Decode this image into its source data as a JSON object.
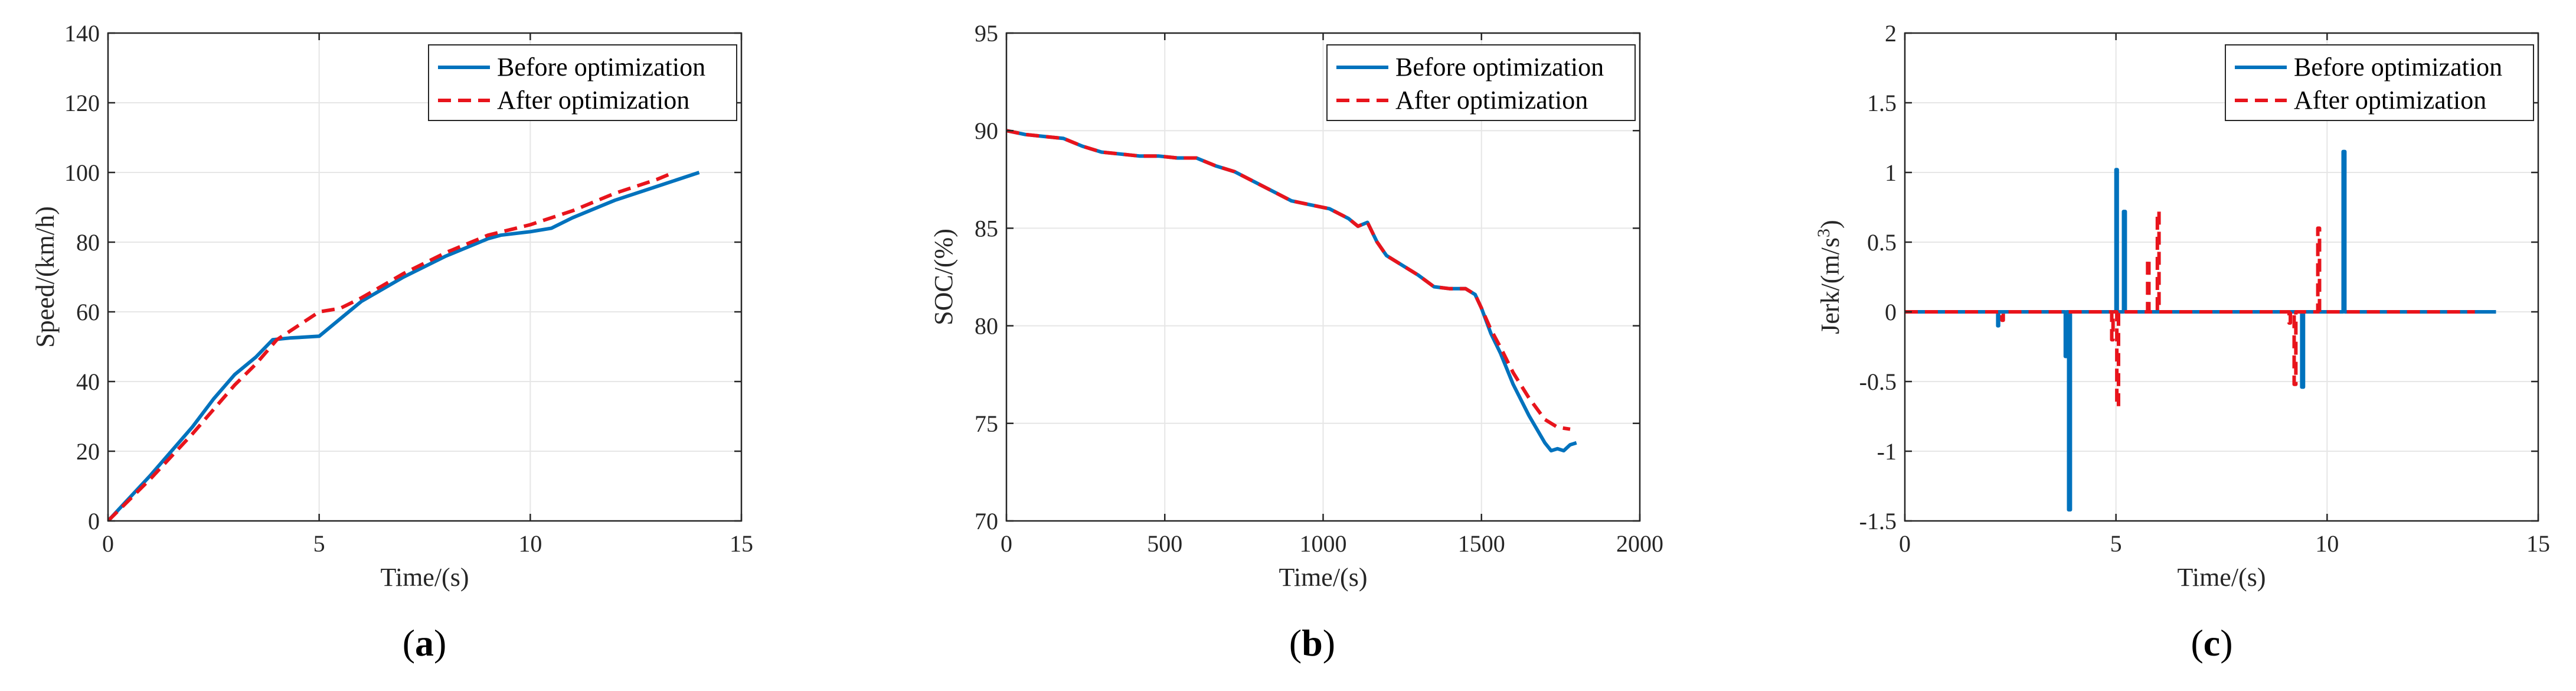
{
  "colors": {
    "before": "#0072BD",
    "after": "#e8141c",
    "axis": "#262626",
    "grid": "#e6e6e6"
  },
  "chart_data": [
    {
      "type": "line",
      "caption": "a",
      "xlabel": "Time/(s)",
      "ylabel": "Speed/(km/h)",
      "xlim": [
        0,
        15
      ],
      "ylim": [
        0,
        140
      ],
      "xticks": [
        0,
        5,
        10,
        15
      ],
      "yticks": [
        0,
        20,
        40,
        60,
        80,
        100,
        120,
        140
      ],
      "legend_location": "top-right",
      "series": [
        {
          "name": "Before optimization",
          "x": [
            0,
            1,
            2,
            2.5,
            3,
            3.5,
            3.9,
            4.3,
            5,
            5.5,
            6,
            7,
            8,
            9,
            9.3,
            10,
            10.5,
            11,
            12,
            13,
            14
          ],
          "y": [
            0,
            13,
            27,
            35,
            42,
            47,
            52,
            52.5,
            53,
            58,
            63,
            70,
            76,
            81,
            82,
            83,
            84,
            87,
            92,
            96,
            100
          ]
        },
        {
          "name": "After optimization",
          "x": [
            0,
            1,
            2,
            3,
            3.5,
            4,
            4.5,
            5,
            5.5,
            6,
            7,
            8,
            9,
            10,
            11,
            12,
            13,
            13.4
          ],
          "y": [
            0,
            12,
            25,
            39,
            45,
            52,
            56,
            60,
            61,
            64,
            71,
            77,
            82,
            85,
            89,
            94,
            98,
            100
          ]
        }
      ]
    },
    {
      "type": "line",
      "caption": "b",
      "xlabel": "Time/(s)",
      "ylabel": "SOC/(%)",
      "xlim": [
        0,
        2000
      ],
      "ylim": [
        70,
        95
      ],
      "xticks": [
        0,
        500,
        1000,
        1500,
        2000
      ],
      "yticks": [
        70,
        75,
        80,
        85,
        90,
        95
      ],
      "legend_location": "top-right",
      "series": [
        {
          "name": "Before optimization",
          "x": [
            0,
            60,
            120,
            180,
            240,
            300,
            360,
            420,
            480,
            540,
            600,
            660,
            720,
            780,
            840,
            900,
            960,
            1020,
            1080,
            1110,
            1140,
            1170,
            1200,
            1250,
            1300,
            1350,
            1400,
            1450,
            1480,
            1500,
            1530,
            1560,
            1600,
            1650,
            1700,
            1720,
            1740,
            1760,
            1780,
            1800
          ],
          "y": [
            90,
            89.8,
            89.7,
            89.6,
            89.2,
            88.9,
            88.8,
            88.7,
            88.7,
            88.6,
            88.6,
            88.2,
            87.9,
            87.4,
            86.9,
            86.4,
            86.2,
            86.0,
            85.5,
            85.1,
            85.3,
            84.3,
            83.6,
            83.1,
            82.6,
            82.0,
            81.9,
            81.9,
            81.6,
            80.9,
            79.6,
            78.6,
            77.0,
            75.4,
            74.0,
            73.6,
            73.7,
            73.6,
            73.9,
            74.0
          ]
        },
        {
          "name": "After optimization",
          "x": [
            0,
            60,
            120,
            180,
            240,
            300,
            360,
            420,
            480,
            540,
            600,
            660,
            720,
            780,
            840,
            900,
            960,
            1020,
            1080,
            1110,
            1140,
            1170,
            1200,
            1250,
            1300,
            1350,
            1400,
            1450,
            1480,
            1500,
            1530,
            1560,
            1600,
            1650,
            1700,
            1740,
            1780
          ],
          "y": [
            90,
            89.8,
            89.7,
            89.6,
            89.2,
            88.9,
            88.8,
            88.7,
            88.7,
            88.6,
            88.6,
            88.2,
            87.9,
            87.4,
            86.9,
            86.4,
            86.2,
            86.0,
            85.5,
            85.1,
            85.3,
            84.3,
            83.6,
            83.1,
            82.6,
            82.0,
            81.9,
            81.9,
            81.6,
            80.9,
            79.8,
            78.9,
            77.6,
            76.3,
            75.2,
            74.8,
            74.7
          ]
        }
      ]
    },
    {
      "type": "line",
      "caption": "c",
      "xlabel": "Time/(s)",
      "ylabel": "Jerk/(m/s",
      "ylabel_superscript": "3",
      "ylabel_suffix": ")",
      "xlim": [
        0,
        15
      ],
      "ylim": [
        -1.5,
        2
      ],
      "xticks": [
        0,
        5,
        10,
        15
      ],
      "yticks": [
        -1.5,
        -1,
        -0.5,
        0,
        0.5,
        1,
        1.5,
        2
      ],
      "legend_location": "top-right",
      "series": [
        {
          "name": "Before optimization",
          "x": [
            0,
            2.2,
            2.2,
            2.22,
            2.22,
            3.8,
            3.8,
            3.83,
            3.83,
            3.88,
            3.88,
            3.92,
            3.92,
            5.0,
            5.0,
            5.03,
            5.03,
            5.18,
            5.18,
            5.22,
            5.22,
            9.4,
            9.4,
            9.44,
            9.44,
            10.38,
            10.38,
            10.42,
            10.42,
            14
          ],
          "y": [
            0,
            0,
            -0.1,
            -0.1,
            0,
            0,
            -0.32,
            -0.32,
            0,
            0,
            -1.42,
            -1.42,
            0,
            0,
            1.02,
            1.02,
            0,
            0,
            0.72,
            0.72,
            0,
            0,
            -0.54,
            -0.54,
            0,
            0,
            1.15,
            1.15,
            0,
            0
          ]
        },
        {
          "name": "After optimization",
          "x": [
            0,
            2.3,
            2.3,
            2.33,
            2.33,
            4.9,
            4.9,
            4.93,
            4.93,
            5.02,
            5.02,
            5.06,
            5.06,
            5.75,
            5.75,
            5.78,
            5.78,
            5.98,
            5.98,
            6.02,
            6.02,
            9.1,
            9.1,
            9.13,
            9.13,
            9.22,
            9.22,
            9.26,
            9.26,
            9.78,
            9.78,
            9.82,
            9.82,
            13.5
          ],
          "y": [
            0,
            0,
            -0.06,
            -0.06,
            0,
            0,
            -0.2,
            -0.2,
            0,
            0,
            -0.68,
            -0.68,
            0,
            0,
            0.38,
            0.38,
            0,
            0,
            0.72,
            0.72,
            0,
            0,
            -0.08,
            -0.08,
            0,
            0,
            -0.52,
            -0.52,
            0,
            0,
            0.6,
            0.6,
            0,
            0
          ]
        }
      ]
    }
  ]
}
